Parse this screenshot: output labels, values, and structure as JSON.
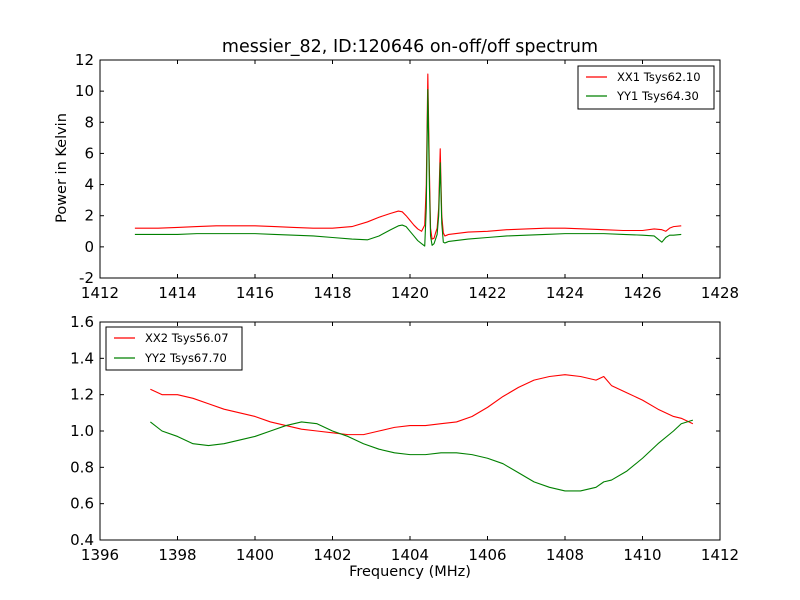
{
  "chart_data": [
    {
      "type": "line",
      "title": "messier_82, ID:120646 on-off/off spectrum",
      "xlabel": "",
      "ylabel": "Power in Kelvin",
      "xlim": [
        1412,
        1428
      ],
      "ylim": [
        -2,
        12
      ],
      "xticks": [
        1412,
        1414,
        1416,
        1418,
        1420,
        1422,
        1424,
        1426,
        1428
      ],
      "yticks": [
        -2,
        0,
        2,
        4,
        6,
        8,
        10,
        12
      ],
      "grid": false,
      "legend_position": "top-right",
      "series": [
        {
          "name": "XX1 Tsys62.10",
          "color": "#ff0000",
          "x": [
            1412.9,
            1413.5,
            1414.0,
            1414.5,
            1415.0,
            1415.5,
            1416.0,
            1416.5,
            1417.0,
            1417.5,
            1418.0,
            1418.5,
            1418.9,
            1419.2,
            1419.5,
            1419.7,
            1419.8,
            1419.9,
            1420.0,
            1420.1,
            1420.2,
            1420.3,
            1420.38,
            1420.42,
            1420.46,
            1420.5,
            1420.53,
            1420.57,
            1420.62,
            1420.66,
            1420.7,
            1420.74,
            1420.78,
            1420.82,
            1420.86,
            1420.9,
            1420.95,
            1421.0,
            1421.5,
            1422.0,
            1422.5,
            1423.0,
            1423.5,
            1424.0,
            1424.5,
            1425.0,
            1425.5,
            1426.0,
            1426.3,
            1426.5,
            1426.6,
            1426.7,
            1426.8,
            1427.0
          ],
          "y": [
            1.2,
            1.2,
            1.25,
            1.3,
            1.35,
            1.35,
            1.35,
            1.3,
            1.25,
            1.2,
            1.2,
            1.3,
            1.6,
            1.9,
            2.15,
            2.3,
            2.25,
            2.0,
            1.7,
            1.4,
            1.15,
            1.0,
            1.4,
            4.0,
            11.1,
            5.0,
            1.2,
            0.5,
            0.55,
            0.9,
            1.2,
            2.5,
            6.3,
            2.0,
            0.9,
            0.7,
            0.75,
            0.8,
            0.95,
            1.0,
            1.1,
            1.15,
            1.2,
            1.2,
            1.15,
            1.1,
            1.05,
            1.05,
            1.15,
            1.1,
            1.0,
            1.2,
            1.3,
            1.35
          ]
        },
        {
          "name": "YY1 Tsys64.30",
          "color": "#008000",
          "x": [
            1412.9,
            1413.5,
            1414.0,
            1414.5,
            1415.0,
            1415.5,
            1416.0,
            1416.5,
            1417.0,
            1417.5,
            1418.0,
            1418.5,
            1418.9,
            1419.2,
            1419.5,
            1419.7,
            1419.8,
            1419.9,
            1420.0,
            1420.1,
            1420.2,
            1420.3,
            1420.38,
            1420.42,
            1420.46,
            1420.5,
            1420.53,
            1420.57,
            1420.62,
            1420.66,
            1420.7,
            1420.74,
            1420.78,
            1420.82,
            1420.86,
            1420.9,
            1420.95,
            1421.0,
            1421.5,
            1422.0,
            1422.5,
            1423.0,
            1423.5,
            1424.0,
            1424.5,
            1425.0,
            1425.5,
            1426.0,
            1426.3,
            1426.5,
            1426.6,
            1426.7,
            1426.8,
            1427.0
          ],
          "y": [
            0.8,
            0.8,
            0.8,
            0.85,
            0.85,
            0.85,
            0.85,
            0.8,
            0.75,
            0.7,
            0.6,
            0.5,
            0.45,
            0.7,
            1.1,
            1.35,
            1.4,
            1.3,
            1.0,
            0.7,
            0.4,
            0.2,
            0.05,
            2.5,
            10.1,
            4.0,
            0.7,
            0.1,
            0.2,
            0.5,
            0.8,
            2.0,
            5.4,
            1.5,
            0.3,
            0.25,
            0.3,
            0.35,
            0.5,
            0.6,
            0.7,
            0.75,
            0.8,
            0.85,
            0.85,
            0.85,
            0.8,
            0.75,
            0.7,
            0.3,
            0.6,
            0.75,
            0.75,
            0.8
          ]
        }
      ]
    },
    {
      "type": "line",
      "title": "",
      "xlabel": "Frequency (MHz)",
      "ylabel": "",
      "xlim": [
        1396,
        1412
      ],
      "ylim": [
        0.4,
        1.6
      ],
      "xticks": [
        1396,
        1398,
        1400,
        1402,
        1404,
        1406,
        1408,
        1410,
        1412
      ],
      "yticks": [
        0.4,
        0.6,
        0.8,
        1.0,
        1.2,
        1.4,
        1.6
      ],
      "grid": false,
      "legend_position": "top-left",
      "series": [
        {
          "name": "XX2 Tsys56.07",
          "color": "#ff0000",
          "x": [
            1397.3,
            1397.6,
            1398.0,
            1398.4,
            1398.8,
            1399.2,
            1399.6,
            1400.0,
            1400.4,
            1400.8,
            1401.2,
            1401.6,
            1402.0,
            1402.4,
            1402.8,
            1403.2,
            1403.6,
            1404.0,
            1404.4,
            1404.8,
            1405.2,
            1405.6,
            1406.0,
            1406.4,
            1406.8,
            1407.2,
            1407.6,
            1408.0,
            1408.4,
            1408.8,
            1409.0,
            1409.2,
            1409.6,
            1410.0,
            1410.4,
            1410.8,
            1411.0,
            1411.3
          ],
          "y": [
            1.23,
            1.2,
            1.2,
            1.18,
            1.15,
            1.12,
            1.1,
            1.08,
            1.05,
            1.03,
            1.01,
            1.0,
            0.99,
            0.98,
            0.98,
            1.0,
            1.02,
            1.03,
            1.03,
            1.04,
            1.05,
            1.08,
            1.13,
            1.19,
            1.24,
            1.28,
            1.3,
            1.31,
            1.3,
            1.28,
            1.3,
            1.25,
            1.21,
            1.17,
            1.12,
            1.08,
            1.07,
            1.04
          ]
        },
        {
          "name": "YY2 Tsys67.70",
          "color": "#008000",
          "x": [
            1397.3,
            1397.6,
            1398.0,
            1398.4,
            1398.8,
            1399.2,
            1399.6,
            1400.0,
            1400.4,
            1400.8,
            1401.2,
            1401.6,
            1402.0,
            1402.4,
            1402.8,
            1403.2,
            1403.6,
            1404.0,
            1404.4,
            1404.8,
            1405.2,
            1405.6,
            1406.0,
            1406.4,
            1406.8,
            1407.2,
            1407.6,
            1408.0,
            1408.4,
            1408.8,
            1409.0,
            1409.2,
            1409.6,
            1410.0,
            1410.4,
            1410.8,
            1411.0,
            1411.3
          ],
          "y": [
            1.05,
            1.0,
            0.97,
            0.93,
            0.92,
            0.93,
            0.95,
            0.97,
            1.0,
            1.03,
            1.05,
            1.04,
            1.0,
            0.97,
            0.93,
            0.9,
            0.88,
            0.87,
            0.87,
            0.88,
            0.88,
            0.87,
            0.85,
            0.82,
            0.77,
            0.72,
            0.69,
            0.67,
            0.67,
            0.69,
            0.72,
            0.73,
            0.78,
            0.85,
            0.93,
            1.0,
            1.04,
            1.06
          ]
        }
      ]
    }
  ]
}
